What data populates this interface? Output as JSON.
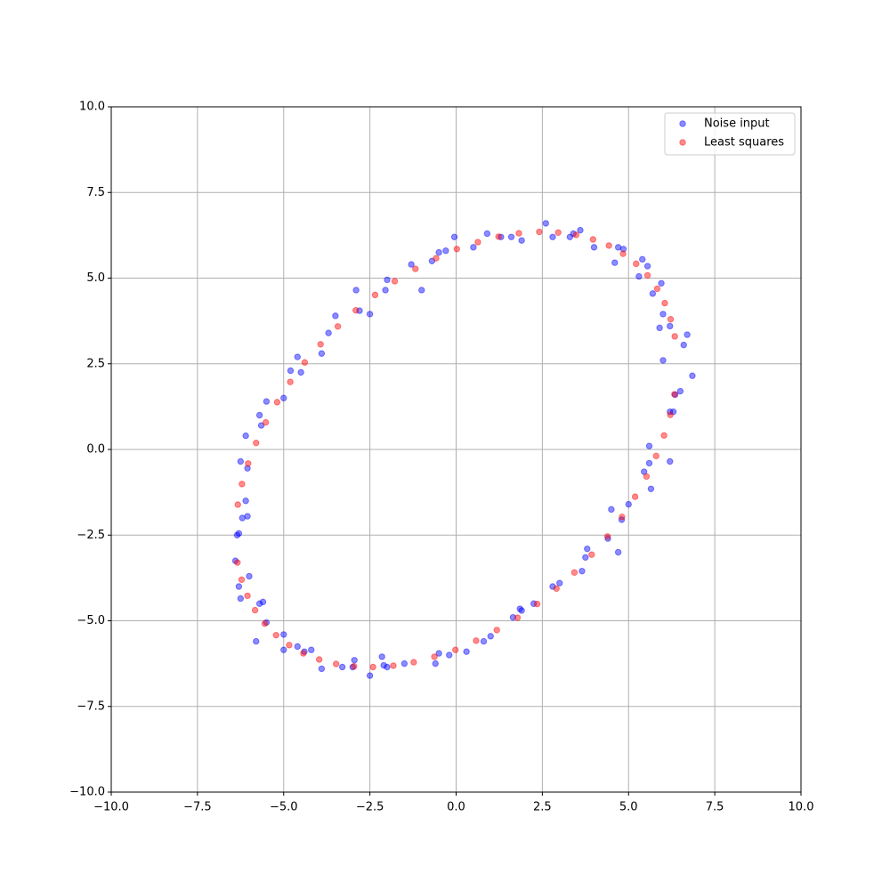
{
  "chart_data": {
    "type": "scatter",
    "xlim": [
      -10,
      10
    ],
    "ylim": [
      -10,
      10
    ],
    "xticks": [
      {
        "value": -10,
        "label": "−10.0"
      },
      {
        "value": -7.5,
        "label": "−7.5"
      },
      {
        "value": -5,
        "label": "−5.0"
      },
      {
        "value": -2.5,
        "label": "−2.5"
      },
      {
        "value": 0,
        "label": "0.0"
      },
      {
        "value": 2.5,
        "label": "2.5"
      },
      {
        "value": 5,
        "label": "5.0"
      },
      {
        "value": 7.5,
        "label": "7.5"
      },
      {
        "value": 10,
        "label": "10.0"
      }
    ],
    "yticks": [
      {
        "value": -10,
        "label": "−10.0"
      },
      {
        "value": -7.5,
        "label": "−7.5"
      },
      {
        "value": -5,
        "label": "−5.0"
      },
      {
        "value": -2.5,
        "label": "−2.5"
      },
      {
        "value": 0,
        "label": "0.0"
      },
      {
        "value": 2.5,
        "label": "2.5"
      },
      {
        "value": 5,
        "label": "5.0"
      },
      {
        "value": 7.5,
        "label": "7.5"
      },
      {
        "value": 10,
        "label": "10.0"
      }
    ],
    "grid": true,
    "legend": "upper-right",
    "alpha": 0.45,
    "series": [
      {
        "name": "Noise input",
        "color": "blue",
        "x": [
          2.6,
          3.6,
          3.3,
          3.4,
          2.8,
          1.9,
          1.6,
          1.3,
          0.9,
          0.5,
          -0.05,
          -0.3,
          -0.5,
          -0.7,
          -1.0,
          -1.3,
          -2.0,
          -2.05,
          -2.5,
          -2.9,
          -2.8,
          -3.5,
          -3.7,
          -3.9,
          -4.6,
          -4.8,
          -4.5,
          -5.0,
          -5.5,
          -5.7,
          -5.65,
          -6.1,
          -6.25,
          -6.05,
          -6.1,
          -6.2,
          -6.05,
          -6.3,
          -6.35,
          4.0,
          4.7,
          4.85,
          4.6,
          5.4,
          5.55,
          5.3,
          5.7,
          5.95,
          6.0,
          5.9,
          6.2,
          6.7,
          6.6,
          6.0,
          6.85,
          6.5,
          6.35,
          6.2,
          6.3,
          5.6,
          6.2,
          5.6,
          5.45,
          5.65,
          5.0,
          4.5,
          4.8,
          4.4,
          4.7,
          3.8,
          3.75,
          3.65,
          2.8,
          3.0,
          2.25,
          1.85,
          1.9,
          1.65,
          1.0,
          0.8,
          0.3,
          -0.2,
          -0.5,
          -0.6,
          -1.5,
          -2.0,
          -2.1,
          -2.15,
          -2.5,
          -2.95,
          -3.0,
          -3.3,
          -3.9,
          -4.2,
          -4.4,
          -4.6,
          -5.0,
          -5.0,
          -5.8,
          -5.5,
          -5.6,
          -5.7,
          -6.0,
          -6.3,
          -6.25,
          -6.4
        ],
        "values": [
          6.6,
          6.4,
          6.2,
          6.3,
          6.2,
          6.1,
          6.2,
          6.2,
          6.3,
          5.9,
          6.2,
          5.8,
          5.75,
          5.5,
          4.65,
          5.4,
          4.95,
          4.65,
          3.95,
          4.65,
          4.05,
          3.9,
          3.4,
          2.8,
          2.7,
          2.3,
          2.25,
          1.5,
          1.4,
          1.0,
          0.7,
          0.4,
          -0.35,
          -0.55,
          -1.5,
          -2.0,
          -1.95,
          -2.45,
          -2.5,
          5.9,
          5.9,
          5.85,
          5.45,
          5.55,
          5.35,
          5.05,
          4.55,
          4.85,
          3.95,
          3.55,
          3.6,
          3.35,
          3.05,
          2.6,
          2.15,
          1.7,
          1.6,
          1.1,
          1.1,
          0.1,
          -0.35,
          -0.4,
          -0.65,
          -1.15,
          -1.6,
          -1.75,
          -2.05,
          -2.6,
          -3.0,
          -2.9,
          -3.15,
          -3.55,
          -4.0,
          -3.9,
          -4.5,
          -4.65,
          -4.7,
          -4.9,
          -5.45,
          -5.6,
          -5.9,
          -6.0,
          -5.95,
          -6.25,
          -6.25,
          -6.35,
          -6.3,
          -6.05,
          -6.6,
          -6.15,
          -6.35,
          -6.35,
          -6.4,
          -5.85,
          -5.9,
          -5.75,
          -5.4,
          -5.85,
          -5.6,
          -5.05,
          -4.45,
          -4.5,
          -3.7,
          -4.0,
          -4.35,
          -3.25
        ]
      },
      {
        "name": "Least squares",
        "color": "red",
        "x": [
          6.34,
          6.22,
          6.05,
          5.83,
          5.55,
          5.22,
          4.84,
          4.43,
          3.97,
          3.48,
          2.96,
          2.41,
          1.82,
          1.23,
          0.63,
          0.02,
          -0.58,
          -1.18,
          -1.78,
          -2.35,
          -2.91,
          -3.43,
          -3.93,
          -4.39,
          -4.81,
          -5.19,
          -5.52,
          -5.8,
          -6.03,
          -6.21,
          -6.33,
          -6.34,
          -6.22,
          -6.05,
          -5.83,
          -5.55,
          -5.22,
          -4.84,
          -4.43,
          -3.97,
          -3.48,
          -2.96,
          -2.41,
          -1.82,
          -1.23,
          -0.63,
          -0.02,
          0.58,
          1.18,
          1.78,
          2.35,
          2.91,
          3.43,
          3.93,
          4.39,
          4.81,
          5.19,
          5.52,
          5.8,
          6.03,
          6.21,
          6.33
        ],
        "values": [
          3.3,
          3.8,
          4.27,
          4.69,
          5.08,
          5.42,
          5.71,
          5.95,
          6.13,
          6.26,
          6.33,
          6.35,
          6.31,
          6.21,
          6.05,
          5.85,
          5.58,
          5.27,
          4.91,
          4.51,
          4.06,
          3.59,
          3.07,
          2.54,
          1.97,
          1.38,
          0.79,
          0.19,
          -0.41,
          -1.01,
          -1.61,
          -3.3,
          -3.8,
          -4.27,
          -4.69,
          -5.08,
          -5.42,
          -5.71,
          -5.95,
          -6.13,
          -6.26,
          -6.33,
          -6.35,
          -6.31,
          -6.21,
          -6.05,
          -5.85,
          -5.58,
          -5.27,
          -4.91,
          -4.51,
          -4.06,
          -3.59,
          -3.07,
          -2.54,
          -1.97,
          -1.38,
          -0.79,
          -0.19,
          0.41,
          1.01,
          1.61
        ]
      }
    ]
  }
}
